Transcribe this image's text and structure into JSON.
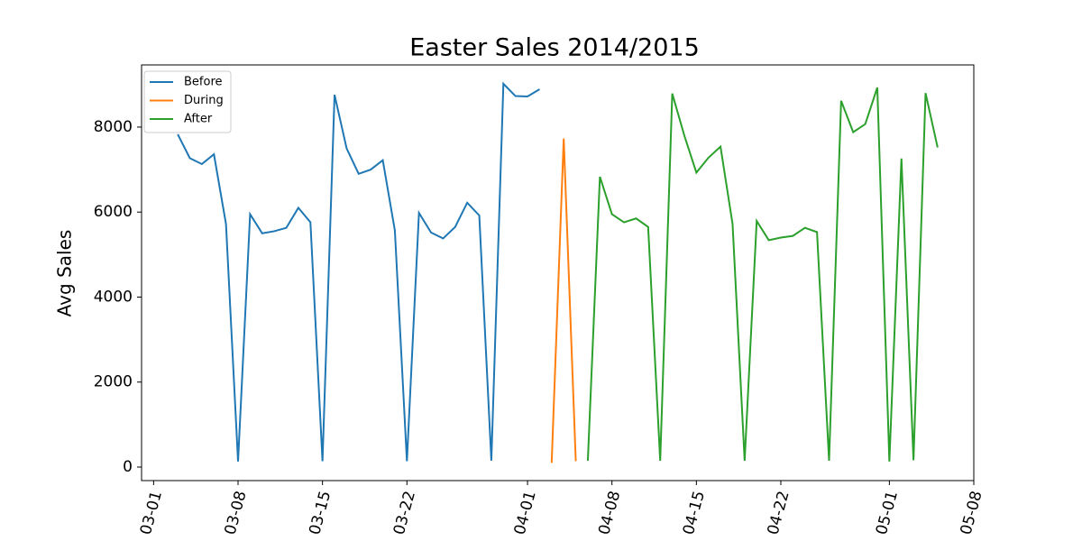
{
  "chart_data": {
    "type": "line",
    "title": "Easter Sales 2014/2015",
    "y_label": "Avg Sales",
    "legend": "upper left",
    "grid": false,
    "xlim": [
      "02-28",
      "05-08"
    ],
    "xticks": [
      "03-01",
      "03-08",
      "03-15",
      "03-22",
      "04-01",
      "04-08",
      "04-15",
      "04-22",
      "05-01",
      "05-08"
    ],
    "ylim": [
      -318,
      9463
    ],
    "yticks": [
      0,
      2000,
      4000,
      6000,
      8000
    ],
    "series": [
      {
        "name": "Before",
        "color": "#1f77b4",
        "x": [
          "03-03",
          "03-04",
          "03-05",
          "03-06",
          "03-07",
          "03-08",
          "03-09",
          "03-10",
          "03-11",
          "03-12",
          "03-13",
          "03-14",
          "03-15",
          "03-16",
          "03-17",
          "03-18",
          "03-19",
          "03-20",
          "03-21",
          "03-22",
          "03-23",
          "03-24",
          "03-25",
          "03-26",
          "03-27",
          "03-28",
          "03-29",
          "03-30",
          "03-31",
          "04-01",
          "04-02"
        ],
        "values": [
          7830,
          7270,
          7130,
          7360,
          5720,
          130,
          5950,
          5500,
          5550,
          5630,
          6100,
          5760,
          140,
          8760,
          7500,
          6900,
          7000,
          7220,
          5570,
          140,
          5980,
          5520,
          5380,
          5650,
          6220,
          5920,
          150,
          9020,
          8730,
          8720,
          8890
        ]
      },
      {
        "name": "During",
        "color": "#ff7f0e",
        "x": [
          "04-03",
          "04-04",
          "04-05"
        ],
        "values": [
          100,
          7730,
          140
        ]
      },
      {
        "name": "After",
        "color": "#2ca02c",
        "x": [
          "04-06",
          "04-07",
          "04-08",
          "04-09",
          "04-10",
          "04-11",
          "04-12",
          "04-13",
          "04-14",
          "04-15",
          "04-16",
          "04-17",
          "04-18",
          "04-19",
          "04-20",
          "04-21",
          "04-22",
          "04-23",
          "04-24",
          "04-25",
          "04-26",
          "04-27",
          "04-28",
          "04-29",
          "04-30",
          "05-01",
          "05-02",
          "05-03",
          "05-04",
          "05-05"
        ],
        "values": [
          150,
          6830,
          5950,
          5760,
          5850,
          5650,
          150,
          8790,
          7800,
          6930,
          7280,
          7540,
          5720,
          150,
          5790,
          5340,
          5400,
          5440,
          5630,
          5530,
          150,
          8620,
          7880,
          8070,
          8930,
          130,
          7260,
          160,
          8800,
          7520
        ]
      }
    ]
  }
}
